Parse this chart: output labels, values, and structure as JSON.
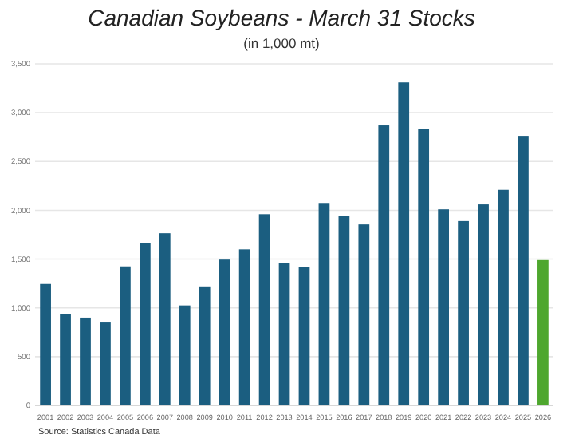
{
  "chart_data": {
    "type": "bar",
    "title": "Canadian Soybeans - March 31 Stocks",
    "subtitle": "(in 1,000 mt)",
    "categories": [
      "2001",
      "2002",
      "2003",
      "2004",
      "2005",
      "2006",
      "2007",
      "2008",
      "2009",
      "2010",
      "2011",
      "2012",
      "2013",
      "2014",
      "2015",
      "2016",
      "2017",
      "2018",
      "2019",
      "2020",
      "2021",
      "2022",
      "2023",
      "2024",
      "2025",
      "2026"
    ],
    "values": [
      1245,
      940,
      900,
      850,
      1425,
      1665,
      1765,
      1025,
      1220,
      1495,
      1600,
      1960,
      1460,
      1420,
      2075,
      1945,
      1855,
      2870,
      3310,
      2835,
      2010,
      1890,
      2060,
      2210,
      2755,
      1490
    ],
    "colors": [
      "#1b5e80",
      "#1b5e80",
      "#1b5e80",
      "#1b5e80",
      "#1b5e80",
      "#1b5e80",
      "#1b5e80",
      "#1b5e80",
      "#1b5e80",
      "#1b5e80",
      "#1b5e80",
      "#1b5e80",
      "#1b5e80",
      "#1b5e80",
      "#1b5e80",
      "#1b5e80",
      "#1b5e80",
      "#1b5e80",
      "#1b5e80",
      "#1b5e80",
      "#1b5e80",
      "#1b5e80",
      "#1b5e80",
      "#1b5e80",
      "#1b5e80",
      "#4ea72e"
    ],
    "ylim": [
      0,
      3500
    ],
    "yticks": [
      {
        "value": 0,
        "label": "0"
      },
      {
        "value": 500,
        "label": "500"
      },
      {
        "value": 1000,
        "label": "1,000"
      },
      {
        "value": 1500,
        "label": "1,500"
      },
      {
        "value": 2000,
        "label": "2,000"
      },
      {
        "value": 2500,
        "label": "2,500"
      },
      {
        "value": 3000,
        "label": "3,000"
      },
      {
        "value": 3500,
        "label": "3,500"
      }
    ],
    "grid": "y",
    "annotations": [
      "Source: Statistics Canada Data"
    ]
  }
}
